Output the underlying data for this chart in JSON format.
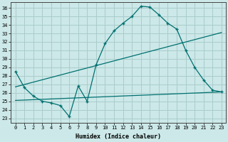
{
  "bg_color": "#cce8e8",
  "grid_color": "#aacccc",
  "line_color": "#007070",
  "xlabel": "Humidex (Indice chaleur)",
  "y_ticks": [
    23,
    24,
    25,
    26,
    27,
    28,
    29,
    30,
    31,
    32,
    33,
    34,
    35,
    36
  ],
  "x_ticks": [
    0,
    1,
    2,
    3,
    4,
    5,
    6,
    7,
    8,
    9,
    10,
    11,
    12,
    13,
    14,
    15,
    16,
    17,
    18,
    19,
    20,
    21,
    22,
    23
  ],
  "ylim": [
    22.5,
    36.7
  ],
  "xlim": [
    -0.5,
    23.5
  ],
  "curve_x": [
    0,
    1,
    2,
    3,
    4,
    5,
    6,
    7,
    8,
    9,
    10,
    11,
    12,
    13,
    14,
    15,
    16,
    17,
    18,
    19,
    20,
    21,
    22,
    23
  ],
  "curve_y": [
    28.5,
    26.6,
    25.6,
    25.0,
    24.8,
    24.5,
    23.2,
    26.8,
    25.0,
    29.3,
    31.8,
    33.3,
    34.2,
    35.0,
    36.2,
    36.1,
    35.2,
    34.2,
    33.5,
    31.0,
    29.0,
    27.5,
    26.3,
    26.1
  ],
  "trend2_x": [
    0,
    23
  ],
  "trend2_y": [
    26.7,
    33.1
  ],
  "trend3_x": [
    0,
    23
  ],
  "trend3_y": [
    25.1,
    26.1
  ]
}
